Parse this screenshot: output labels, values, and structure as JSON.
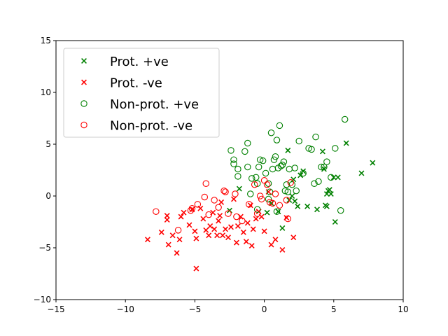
{
  "chart_data": {
    "type": "scatter",
    "title": "",
    "xlabel": "",
    "ylabel": "",
    "xlim": [
      -15,
      10
    ],
    "ylim": [
      -10,
      15
    ],
    "xticks": [
      -15,
      -10,
      -5,
      0,
      5,
      10
    ],
    "yticks": [
      -10,
      -5,
      0,
      5,
      10,
      15
    ],
    "xtick_labels": [
      "−15",
      "−10",
      "−5",
      "0",
      "5",
      "10"
    ],
    "ytick_labels": [
      "−10",
      "−5",
      "0",
      "5",
      "10",
      "15"
    ],
    "grid": false,
    "legend_position": "top-left",
    "series": [
      {
        "name": "Prot. +ve",
        "marker": "x",
        "color": "#008000",
        "points": [
          [
            -2.5,
            -1.4
          ],
          [
            -1.8,
            0.7
          ],
          [
            0.5,
            -0.7
          ],
          [
            1.0,
            -1.5
          ],
          [
            1.3,
            -3.1
          ],
          [
            1.7,
            4.4
          ],
          [
            1.8,
            -0.4
          ],
          [
            2.0,
            0.0
          ],
          [
            2.1,
            1.6
          ],
          [
            2.2,
            -0.5
          ],
          [
            2.4,
            -1.0
          ],
          [
            2.6,
            2.0
          ],
          [
            2.8,
            2.4
          ],
          [
            3.1,
            -1.0
          ],
          [
            3.8,
            -1.3
          ],
          [
            4.2,
            4.3
          ],
          [
            4.3,
            2.6
          ],
          [
            4.4,
            -0.9
          ],
          [
            4.5,
            -1.0
          ],
          [
            4.5,
            0.2
          ],
          [
            4.6,
            0.5
          ],
          [
            4.7,
            0.6
          ],
          [
            4.8,
            0.2
          ],
          [
            5.0,
            1.8
          ],
          [
            5.1,
            -2.5
          ],
          [
            5.3,
            1.8
          ],
          [
            5.9,
            5.1
          ],
          [
            7.0,
            2.2
          ],
          [
            7.8,
            3.2
          ],
          [
            0.2,
            -1.6
          ]
        ]
      },
      {
        "name": "Prot. -ve",
        "marker": "x",
        "color": "#ff0000",
        "points": [
          [
            -8.4,
            -4.2
          ],
          [
            -7.4,
            -3.5
          ],
          [
            -7.0,
            -1.9
          ],
          [
            -7.0,
            -2.3
          ],
          [
            -6.9,
            -4.7
          ],
          [
            -6.6,
            -3.8
          ],
          [
            -6.3,
            -5.5
          ],
          [
            -6.1,
            -4.2
          ],
          [
            -6.0,
            -2.0
          ],
          [
            -5.8,
            -1.6
          ],
          [
            -5.4,
            -2.8
          ],
          [
            -5.2,
            -1.3
          ],
          [
            -5.0,
            -3.4
          ],
          [
            -4.9,
            -4.1
          ],
          [
            -4.9,
            -7.0
          ],
          [
            -4.6,
            -1.2
          ],
          [
            -4.4,
            -2.2
          ],
          [
            -4.2,
            -3.3
          ],
          [
            -4.0,
            -3.8
          ],
          [
            -3.9,
            -2.9
          ],
          [
            -3.7,
            -1.6
          ],
          [
            -3.6,
            -3.2
          ],
          [
            -3.4,
            -3.8
          ],
          [
            -3.3,
            -2.4
          ],
          [
            -3.2,
            -1.9
          ],
          [
            -3.1,
            -0.6
          ],
          [
            -3.0,
            -3.8
          ],
          [
            -2.8,
            -3.2
          ],
          [
            -2.6,
            -4.0
          ],
          [
            -2.4,
            -3.0
          ],
          [
            -2.2,
            -0.3
          ],
          [
            -2.0,
            -4.5
          ],
          [
            -1.9,
            -2.9
          ],
          [
            -1.7,
            -2.0
          ],
          [
            -1.5,
            -3.5
          ],
          [
            -1.2,
            -2.6
          ],
          [
            -1.0,
            -0.9
          ],
          [
            -0.9,
            -4.8
          ],
          [
            -0.8,
            -3.2
          ],
          [
            -0.6,
            -2.2
          ],
          [
            -0.4,
            -1.5
          ],
          [
            -0.2,
            -2.0
          ],
          [
            0.0,
            -3.4
          ],
          [
            0.3,
            0.4
          ],
          [
            0.5,
            -4.7
          ],
          [
            0.8,
            -4.2
          ],
          [
            1.3,
            -5.2
          ],
          [
            1.6,
            -2.1
          ],
          [
            2.1,
            -4.0
          ],
          [
            -1.3,
            -4.4
          ]
        ]
      },
      {
        "name": "Non-prot. +ve",
        "marker": "o",
        "color": "#008000",
        "points": [
          [
            -2.4,
            4.4
          ],
          [
            -2.2,
            3.5
          ],
          [
            -2.2,
            3.1
          ],
          [
            -1.9,
            2.6
          ],
          [
            -1.9,
            1.9
          ],
          [
            -1.4,
            4.3
          ],
          [
            -1.2,
            5.1
          ],
          [
            -1.2,
            2.8
          ],
          [
            -1.0,
            0.2
          ],
          [
            -0.9,
            1.7
          ],
          [
            -0.6,
            1.8
          ],
          [
            -0.5,
            1.2
          ],
          [
            -0.4,
            2.8
          ],
          [
            -0.3,
            3.5
          ],
          [
            -0.1,
            3.4
          ],
          [
            0.1,
            2.2
          ],
          [
            0.3,
            1.2
          ],
          [
            0.4,
            0.4
          ],
          [
            0.5,
            6.1
          ],
          [
            0.6,
            2.6
          ],
          [
            0.7,
            3.5
          ],
          [
            0.8,
            3.8
          ],
          [
            0.9,
            5.4
          ],
          [
            1.0,
            2.7
          ],
          [
            1.1,
            6.8
          ],
          [
            1.2,
            2.9
          ],
          [
            1.3,
            3.0
          ],
          [
            1.4,
            3.3
          ],
          [
            1.5,
            0.5
          ],
          [
            1.7,
            0.4
          ],
          [
            1.8,
            2.6
          ],
          [
            2.0,
            1.1
          ],
          [
            2.2,
            2.7
          ],
          [
            2.3,
            0.5
          ],
          [
            2.5,
            5.3
          ],
          [
            2.8,
            2.2
          ],
          [
            3.2,
            4.6
          ],
          [
            3.4,
            4.5
          ],
          [
            3.6,
            1.2
          ],
          [
            3.7,
            5.7
          ],
          [
            3.9,
            1.4
          ],
          [
            4.1,
            2.8
          ],
          [
            4.3,
            2.8
          ],
          [
            4.5,
            3.3
          ],
          [
            4.8,
            1.8
          ],
          [
            5.1,
            4.6
          ],
          [
            5.5,
            -1.4
          ],
          [
            5.8,
            7.4
          ],
          [
            0.3,
            -0.3
          ],
          [
            0.9,
            -1.5
          ],
          [
            -0.5,
            -1.3
          ],
          [
            1.6,
            1.1
          ]
        ]
      },
      {
        "name": "Non-prot. -ve",
        "marker": "o",
        "color": "#ff0000",
        "points": [
          [
            -7.8,
            -1.5
          ],
          [
            -6.2,
            -3.3
          ],
          [
            -5.3,
            -1.4
          ],
          [
            -5.2,
            -1.2
          ],
          [
            -4.8,
            -0.8
          ],
          [
            -4.3,
            -0.1
          ],
          [
            -4.2,
            1.2
          ],
          [
            -4.0,
            -1.8
          ],
          [
            -3.6,
            -0.4
          ],
          [
            -3.3,
            -1.1
          ],
          [
            -2.9,
            0.5
          ],
          [
            -2.8,
            0.4
          ],
          [
            -2.6,
            -1.7
          ],
          [
            -2.1,
            0.2
          ],
          [
            -1.6,
            -2.4
          ],
          [
            -1.1,
            -0.8
          ],
          [
            -0.7,
            1.1
          ],
          [
            -0.5,
            -1.7
          ],
          [
            -0.2,
            -0.3
          ],
          [
            0.0,
            1.5
          ],
          [
            0.2,
            1.1
          ],
          [
            0.4,
            -0.6
          ],
          [
            0.6,
            -0.7
          ],
          [
            0.8,
            0.2
          ],
          [
            1.1,
            -0.9
          ],
          [
            1.6,
            -0.4
          ],
          [
            1.7,
            -2.2
          ],
          [
            1.9,
            1.3
          ],
          [
            -0.3,
            0.0
          ],
          [
            -2.0,
            -2.0
          ]
        ]
      }
    ]
  }
}
